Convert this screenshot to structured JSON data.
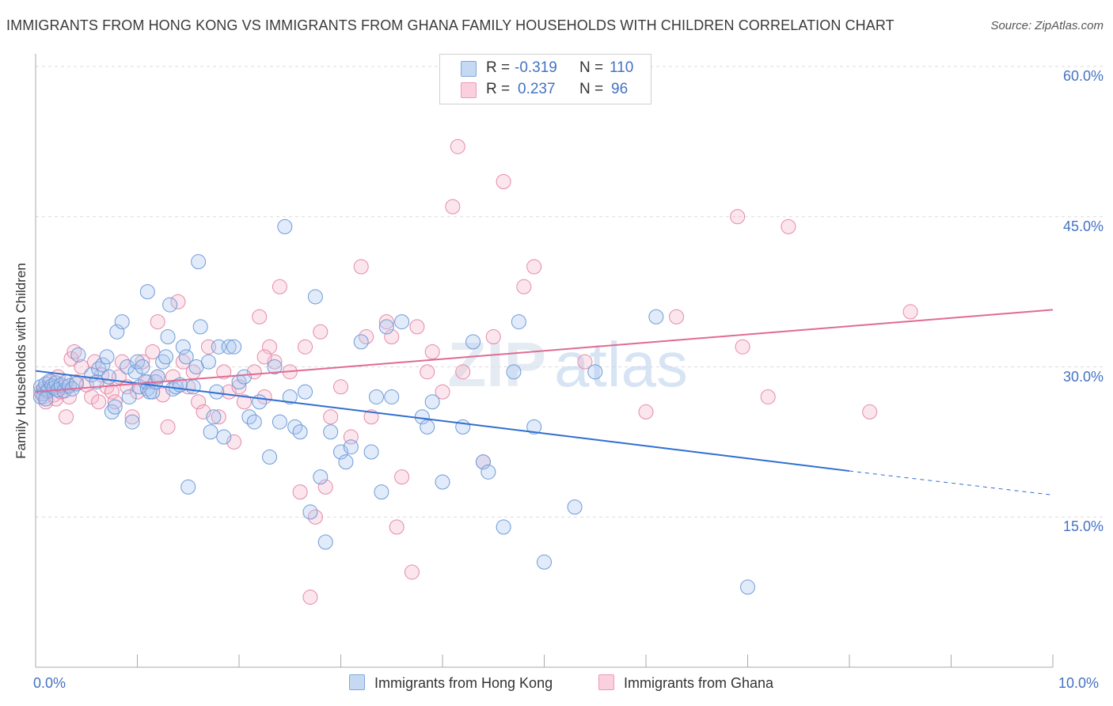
{
  "header": {
    "title": "IMMIGRANTS FROM HONG KONG VS IMMIGRANTS FROM GHANA FAMILY HOUSEHOLDS WITH CHILDREN CORRELATION CHART",
    "source": "Source: ZipAtlas.com"
  },
  "watermark": {
    "zip": "ZIP",
    "atlas": "atlas"
  },
  "legend": {
    "rows": [
      {
        "r_label": "R =",
        "r_value": "-0.319",
        "n_label": "N =",
        "n_value": "110",
        "color": "#a9c7f0"
      },
      {
        "r_label": "R =",
        "r_value": "0.237",
        "n_label": "N =",
        "n_value": "96",
        "color": "#f7b8cc"
      }
    ]
  },
  "bottom_legend": {
    "hongkong": "Immigrants from Hong Kong",
    "ghana": "Immigrants from Ghana"
  },
  "colors": {
    "hongkong_fill": "#a9c7f0",
    "hongkong_stroke": "#6f9bd8",
    "hongkong_line": "#2f6fd0",
    "ghana_fill": "#f7b8cc",
    "ghana_stroke": "#e58aa8",
    "ghana_line": "#e06b93",
    "tick_label": "#4472c4",
    "grid": "#dcdcdc"
  },
  "chart_data": {
    "type": "scatter",
    "title": "IMMIGRANTS FROM HONG KONG VS IMMIGRANTS FROM GHANA FAMILY HOUSEHOLDS WITH CHILDREN CORRELATION CHART",
    "xlabel": "",
    "ylabel": "Family Households with Children",
    "xlim": [
      0,
      10
    ],
    "ylim": [
      0,
      60
    ],
    "x_tick_labels": [
      "0.0%",
      "10.0%"
    ],
    "y_ticks": [
      15,
      30,
      45,
      60
    ],
    "y_tick_labels": [
      "15.0%",
      "30.0%",
      "45.0%",
      "60.0%"
    ],
    "grid": true,
    "legend_position": "top-center",
    "series": [
      {
        "name": "Immigrants from Hong Kong",
        "r": -0.319,
        "n": 110,
        "trend": {
          "x0": 0.0,
          "y0": 29.6,
          "x1": 8.0,
          "y1": 19.6,
          "dash_to_x": 10.0,
          "dash_to_y": 17.2
        },
        "points": [
          [
            0.05,
            28.0
          ],
          [
            0.07,
            27.3
          ],
          [
            0.08,
            27.8
          ],
          [
            0.1,
            28.3
          ],
          [
            0.12,
            27.6
          ],
          [
            0.14,
            28.6
          ],
          [
            0.16,
            28.1
          ],
          [
            0.18,
            27.9
          ],
          [
            0.2,
            28.4
          ],
          [
            0.22,
            27.7
          ],
          [
            0.25,
            28.2
          ],
          [
            0.28,
            27.6
          ],
          [
            0.3,
            28.5
          ],
          [
            0.33,
            28.1
          ],
          [
            0.36,
            27.8
          ],
          [
            0.4,
            28.3
          ],
          [
            0.05,
            27.0
          ],
          [
            0.1,
            26.8
          ],
          [
            0.42,
            31.2
          ],
          [
            0.55,
            29.2
          ],
          [
            0.6,
            28.5
          ],
          [
            0.62,
            29.8
          ],
          [
            0.66,
            30.2
          ],
          [
            0.7,
            31.0
          ],
          [
            0.72,
            29.0
          ],
          [
            0.75,
            25.5
          ],
          [
            0.78,
            26.0
          ],
          [
            0.8,
            33.5
          ],
          [
            0.85,
            34.5
          ],
          [
            0.9,
            30.0
          ],
          [
            0.92,
            27.0
          ],
          [
            0.95,
            24.5
          ],
          [
            0.98,
            29.5
          ],
          [
            1.0,
            30.5
          ],
          [
            1.02,
            28.0
          ],
          [
            1.05,
            30.0
          ],
          [
            1.08,
            28.5
          ],
          [
            1.1,
            27.8
          ],
          [
            1.12,
            27.5
          ],
          [
            1.15,
            27.5
          ],
          [
            1.18,
            28.5
          ],
          [
            1.2,
            29.0
          ],
          [
            1.25,
            30.5
          ],
          [
            1.28,
            31.0
          ],
          [
            1.3,
            33.0
          ],
          [
            1.32,
            36.2
          ],
          [
            1.35,
            27.8
          ],
          [
            1.38,
            28.0
          ],
          [
            1.42,
            28.2
          ],
          [
            1.45,
            32.0
          ],
          [
            1.48,
            31.0
          ],
          [
            1.5,
            18.0
          ],
          [
            1.55,
            28.0
          ],
          [
            1.58,
            30.0
          ],
          [
            1.6,
            40.5
          ],
          [
            1.62,
            34.0
          ],
          [
            1.7,
            30.5
          ],
          [
            1.72,
            23.5
          ],
          [
            1.75,
            25.0
          ],
          [
            1.78,
            27.5
          ],
          [
            1.8,
            32.0
          ],
          [
            1.85,
            23.0
          ],
          [
            1.9,
            32.0
          ],
          [
            1.95,
            32.0
          ],
          [
            2.0,
            28.5
          ],
          [
            2.05,
            29.0
          ],
          [
            2.1,
            25.0
          ],
          [
            2.15,
            24.5
          ],
          [
            2.2,
            26.5
          ],
          [
            2.3,
            21.0
          ],
          [
            2.35,
            30.0
          ],
          [
            2.4,
            24.5
          ],
          [
            2.45,
            44.0
          ],
          [
            2.5,
            27.0
          ],
          [
            2.55,
            24.0
          ],
          [
            2.6,
            23.5
          ],
          [
            2.65,
            27.5
          ],
          [
            2.7,
            15.5
          ],
          [
            2.75,
            37.0
          ],
          [
            2.8,
            19.0
          ],
          [
            2.85,
            12.5
          ],
          [
            2.9,
            23.5
          ],
          [
            3.0,
            21.5
          ],
          [
            3.05,
            20.5
          ],
          [
            3.1,
            22.0
          ],
          [
            3.2,
            32.5
          ],
          [
            3.3,
            21.5
          ],
          [
            3.35,
            27.0
          ],
          [
            3.4,
            17.5
          ],
          [
            3.45,
            34.0
          ],
          [
            3.5,
            27.0
          ],
          [
            3.6,
            34.5
          ],
          [
            3.8,
            25.0
          ],
          [
            3.85,
            24.0
          ],
          [
            3.9,
            26.5
          ],
          [
            4.0,
            18.5
          ],
          [
            4.2,
            24.0
          ],
          [
            4.3,
            32.5
          ],
          [
            4.4,
            20.5
          ],
          [
            4.45,
            19.5
          ],
          [
            4.6,
            14.0
          ],
          [
            4.7,
            29.5
          ],
          [
            4.75,
            34.5
          ],
          [
            4.9,
            24.0
          ],
          [
            5.0,
            10.5
          ],
          [
            5.3,
            16.0
          ],
          [
            5.5,
            29.5
          ],
          [
            6.1,
            35.0
          ],
          [
            7.0,
            8.0
          ],
          [
            1.1,
            37.5
          ]
        ]
      },
      {
        "name": "Immigrants from Ghana",
        "r": 0.237,
        "n": 96,
        "trend": {
          "x0": 0.0,
          "y0": 27.5,
          "x1": 10.0,
          "y1": 35.7
        },
        "points": [
          [
            0.05,
            27.5
          ],
          [
            0.08,
            27.0
          ],
          [
            0.1,
            26.5
          ],
          [
            0.12,
            27.8
          ],
          [
            0.15,
            28.5
          ],
          [
            0.18,
            27.2
          ],
          [
            0.2,
            26.8
          ],
          [
            0.22,
            29.0
          ],
          [
            0.25,
            27.5
          ],
          [
            0.28,
            28.0
          ],
          [
            0.3,
            25.0
          ],
          [
            0.33,
            27.0
          ],
          [
            0.35,
            30.8
          ],
          [
            0.38,
            31.5
          ],
          [
            0.4,
            28.5
          ],
          [
            0.45,
            30.0
          ],
          [
            0.5,
            28.2
          ],
          [
            0.55,
            27.0
          ],
          [
            0.58,
            30.5
          ],
          [
            0.62,
            26.5
          ],
          [
            0.65,
            29.2
          ],
          [
            0.7,
            28.0
          ],
          [
            0.75,
            27.5
          ],
          [
            0.78,
            26.5
          ],
          [
            0.82,
            29.0
          ],
          [
            0.85,
            30.5
          ],
          [
            0.9,
            28.0
          ],
          [
            0.95,
            25.0
          ],
          [
            1.0,
            27.5
          ],
          [
            1.05,
            30.5
          ],
          [
            1.1,
            28.5
          ],
          [
            1.15,
            31.5
          ],
          [
            1.2,
            29.0
          ],
          [
            1.25,
            27.2
          ],
          [
            1.3,
            24.0
          ],
          [
            1.35,
            29.0
          ],
          [
            1.4,
            36.5
          ],
          [
            1.45,
            30.5
          ],
          [
            1.5,
            28.0
          ],
          [
            1.55,
            29.5
          ],
          [
            1.6,
            26.5
          ],
          [
            1.65,
            25.5
          ],
          [
            1.7,
            32.0
          ],
          [
            1.8,
            25.0
          ],
          [
            1.85,
            29.5
          ],
          [
            1.9,
            27.5
          ],
          [
            1.95,
            22.5
          ],
          [
            2.0,
            28.0
          ],
          [
            2.05,
            26.5
          ],
          [
            2.15,
            29.5
          ],
          [
            2.2,
            35.0
          ],
          [
            2.25,
            27.0
          ],
          [
            2.3,
            32.0
          ],
          [
            2.35,
            30.5
          ],
          [
            2.4,
            38.0
          ],
          [
            2.5,
            29.5
          ],
          [
            2.6,
            17.5
          ],
          [
            2.65,
            32.0
          ],
          [
            2.7,
            7.0
          ],
          [
            2.75,
            15.0
          ],
          [
            2.8,
            33.5
          ],
          [
            2.85,
            18.0
          ],
          [
            2.9,
            25.0
          ],
          [
            3.0,
            28.0
          ],
          [
            3.1,
            23.0
          ],
          [
            3.2,
            40.0
          ],
          [
            3.25,
            33.0
          ],
          [
            3.3,
            25.0
          ],
          [
            3.5,
            33.0
          ],
          [
            3.55,
            14.0
          ],
          [
            3.6,
            19.0
          ],
          [
            3.7,
            9.5
          ],
          [
            3.75,
            34.0
          ],
          [
            3.85,
            29.5
          ],
          [
            3.9,
            31.5
          ],
          [
            4.0,
            27.5
          ],
          [
            4.1,
            46.0
          ],
          [
            4.15,
            52.0
          ],
          [
            4.2,
            29.5
          ],
          [
            4.4,
            20.5
          ],
          [
            4.5,
            33.0
          ],
          [
            4.6,
            48.5
          ],
          [
            4.8,
            38.0
          ],
          [
            4.9,
            40.0
          ],
          [
            5.4,
            30.5
          ],
          [
            6.0,
            25.5
          ],
          [
            6.3,
            35.0
          ],
          [
            6.9,
            45.0
          ],
          [
            6.95,
            32.0
          ],
          [
            7.2,
            27.0
          ],
          [
            7.4,
            44.0
          ],
          [
            8.2,
            25.5
          ],
          [
            8.6,
            35.5
          ],
          [
            2.25,
            31.0
          ],
          [
            1.2,
            34.5
          ],
          [
            3.45,
            34.5
          ]
        ]
      }
    ]
  }
}
